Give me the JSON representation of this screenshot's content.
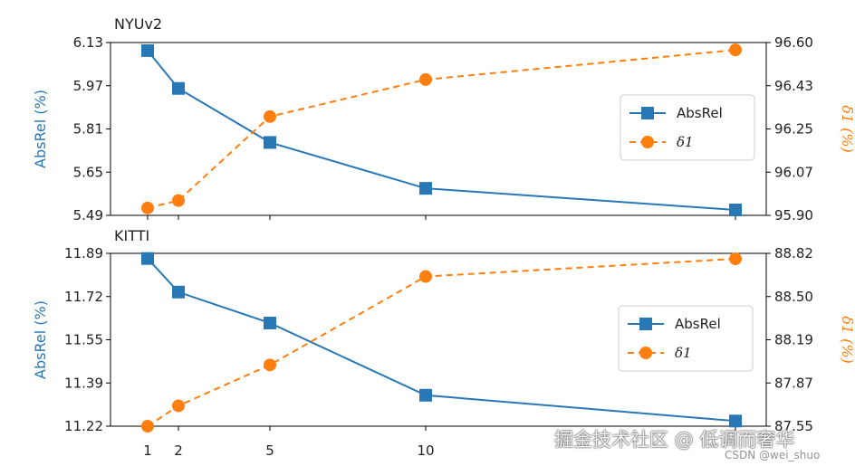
{
  "colors": {
    "absrel": "#2878b5",
    "d1": "#ff7f0e"
  },
  "chart_data": [
    {
      "type": "line",
      "title": "NYUv2",
      "x": [
        1,
        2,
        5,
        10,
        20
      ],
      "ylabel_left": "AbsRel (%)",
      "ylabel_right": "δ1 (%)",
      "ylim_left": [
        5.49,
        6.13
      ],
      "ylim_right": [
        95.9,
        96.6
      ],
      "yticks_left": [
        "6.13",
        "5.97",
        "5.81",
        "5.65",
        "5.49"
      ],
      "yticks_right": [
        "96.60",
        "96.43",
        "96.25",
        "96.07",
        "95.90"
      ],
      "series": [
        {
          "name": "AbsRel",
          "axis": "left",
          "marker": "square",
          "dash": false,
          "values": [
            6.1,
            5.96,
            5.76,
            5.59,
            5.51
          ]
        },
        {
          "name": "δ1",
          "axis": "right",
          "marker": "circle",
          "dash": true,
          "values": [
            95.93,
            95.96,
            96.3,
            96.45,
            96.57
          ]
        }
      ],
      "legend": "center-right"
    },
    {
      "type": "line",
      "title": "KITTI",
      "x": [
        1,
        2,
        5,
        10,
        20
      ],
      "xticks": [
        "1",
        "2",
        "5",
        "10"
      ],
      "ylabel_left": "AbsRel (%)",
      "ylabel_right": "δ1 (%)",
      "ylim_left": [
        11.22,
        11.89
      ],
      "ylim_right": [
        87.55,
        88.82
      ],
      "yticks_left": [
        "11.89",
        "11.72",
        "11.55",
        "11.39",
        "11.22"
      ],
      "yticks_right": [
        "88.82",
        "88.50",
        "88.19",
        "87.87",
        "87.55"
      ],
      "series": [
        {
          "name": "AbsRel",
          "axis": "left",
          "marker": "square",
          "dash": false,
          "values": [
            11.87,
            11.74,
            11.62,
            11.34,
            11.24
          ]
        },
        {
          "name": "δ1",
          "axis": "right",
          "marker": "circle",
          "dash": true,
          "values": [
            87.55,
            87.7,
            88.0,
            88.65,
            88.78
          ]
        }
      ],
      "legend": "center-right"
    }
  ],
  "watermark": {
    "main": "掘金技术社区 @ 低调而奢华",
    "sub": "CSDN @wei_shuo"
  }
}
